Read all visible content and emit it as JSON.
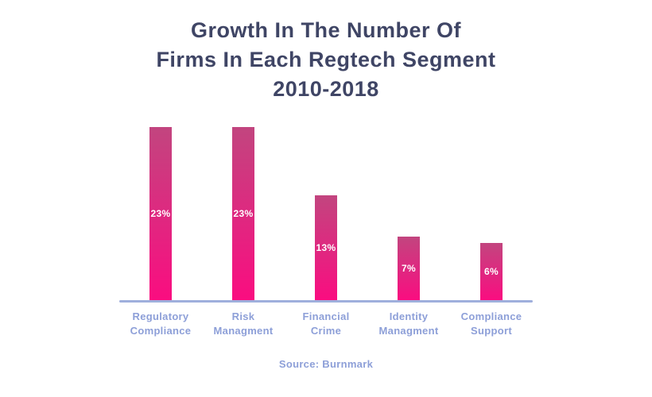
{
  "title": {
    "line1": "Growth In The Number Of",
    "line2": "Firms In Each Regtech Segment",
    "line3": "2010-2018"
  },
  "source": "Source: Burnmark",
  "colors": {
    "background": "#ffffff",
    "title": "#3f4565",
    "category_label": "#8d9fd8",
    "axis": "#9fafdc",
    "bar_top": "#c2457f",
    "bar_bottom": "#fa0d80",
    "bar_value_text": "#ffffff"
  },
  "chart_data": {
    "type": "bar",
    "title": "Growth In The Number Of Firms In Each Regtech Segment 2010-2018",
    "categories": [
      "Regulatory Compliance",
      "Risk Managment",
      "Financial Crime",
      "Identity Managment",
      "Compliance Support"
    ],
    "category_label_lines": [
      [
        "Regulatory",
        "Compliance"
      ],
      [
        "Risk",
        "Managment"
      ],
      [
        "Financial",
        "Crime"
      ],
      [
        "Identity",
        "Managment"
      ],
      [
        "Compliance",
        "Support"
      ]
    ],
    "values": [
      23,
      23,
      13,
      7,
      6
    ],
    "value_labels": [
      "23%",
      "23%",
      "13%",
      "7%",
      "6%"
    ],
    "unit": "%",
    "ylim": [
      0,
      25
    ],
    "grid": false,
    "legend": "none",
    "source": "Burnmark"
  }
}
